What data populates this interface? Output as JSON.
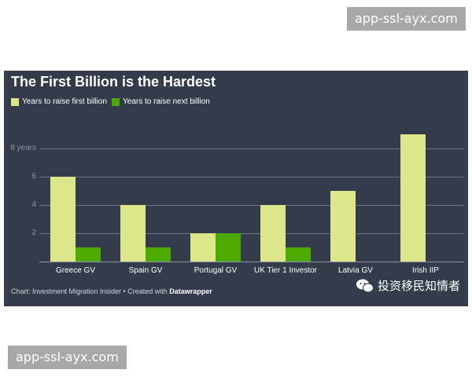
{
  "watermarks": {
    "top": "app-ssl-ayx.com",
    "bottom": "app-ssl-ayx.com"
  },
  "chart": {
    "title": "The First Billion is the Hardest",
    "legend": [
      {
        "label": "Years to raise first billion",
        "color": "#dde68a"
      },
      {
        "label": "Years to raise next billion",
        "color": "#4daa00"
      }
    ],
    "yticks": [
      {
        "value": 2,
        "label": "2"
      },
      {
        "value": 4,
        "label": "4"
      },
      {
        "value": 6,
        "label": "6"
      },
      {
        "value": 8,
        "label": "8 years"
      }
    ],
    "footer": {
      "prefix": "Chart: Investment Migration Insider • Created with ",
      "brand": "Datawrapper"
    },
    "wechat_label": "投资移民知情者"
  },
  "chart_data": {
    "type": "bar",
    "title": "The First Billion is the Hardest",
    "categories": [
      "Greece GV",
      "Spain GV",
      "Portugal GV",
      "UK Tier 1 Investor",
      "Latvia GV",
      "Irish IIP"
    ],
    "series": [
      {
        "name": "Years to raise first billion",
        "values": [
          6,
          4,
          2,
          4,
          5,
          9
        ],
        "color": "#dde68a"
      },
      {
        "name": "Years to raise next billion",
        "values": [
          1,
          1,
          2,
          1,
          null,
          null
        ],
        "color": "#4daa00"
      }
    ],
    "xlabel": "",
    "ylabel": "years",
    "ylim": [
      0,
      9
    ],
    "grid": true,
    "legend_position": "top-left",
    "source": "Chart: Investment Migration Insider • Created with Datawrapper"
  }
}
